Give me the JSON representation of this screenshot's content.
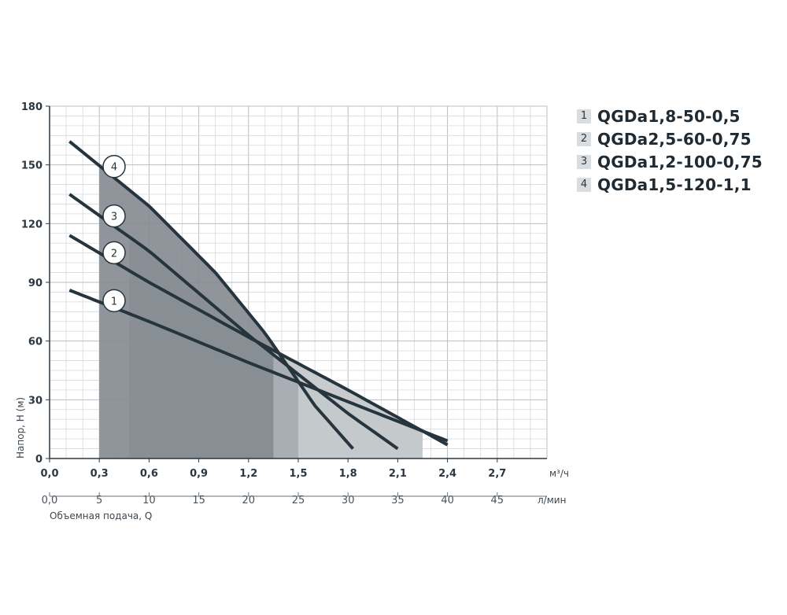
{
  "chart_data": {
    "type": "line",
    "title": "",
    "ylabel": "Напор, Н (м)",
    "xlabel": "Объемная подача, Q",
    "x_unit": "м³/ч",
    "x2_unit": "л/мин",
    "xlim": [
      0,
      3.0
    ],
    "ylim": [
      0,
      180
    ],
    "x_ticks": [
      "0,0",
      "0,3",
      "0,6",
      "0,9",
      "1,2",
      "1,5",
      "1,8",
      "2,1",
      "2,4",
      "2,7"
    ],
    "x2_ticks": [
      "0,0",
      "5",
      "10",
      "15",
      "20",
      "25",
      "30",
      "35",
      "40",
      "45"
    ],
    "y_ticks": [
      "0",
      "30",
      "60",
      "90",
      "120",
      "150",
      "180"
    ],
    "grid": true,
    "legend_position": "right",
    "series": [
      {
        "name": "QGDa1,8-50-0,5",
        "label": "1",
        "x": [
          0.12,
          0.6,
          1.2,
          1.8,
          2.4
        ],
        "y": [
          86,
          70,
          49,
          29,
          9
        ],
        "work_range": [
          0.72,
          2.25
        ]
      },
      {
        "name": "QGDa2,5-60-0,75",
        "label": "2",
        "x": [
          0.12,
          0.6,
          1.2,
          1.8,
          2.4
        ],
        "y": [
          114,
          90,
          62,
          35,
          7
        ],
        "work_range": [
          0.6,
          2.25
        ]
      },
      {
        "name": "QGDa1,2-100-0,75",
        "label": "3",
        "x": [
          0.12,
          0.6,
          1.2,
          1.8,
          2.1
        ],
        "y": [
          135,
          106,
          63,
          23,
          5
        ],
        "work_range": [
          0.48,
          1.5
        ]
      },
      {
        "name": "QGDa1,5-120-1,1",
        "label": "4",
        "x": [
          0.12,
          0.6,
          1.0,
          1.3,
          1.6,
          1.83
        ],
        "y": [
          162,
          129,
          95,
          64,
          27,
          5
        ],
        "work_range": [
          0.3,
          1.35
        ]
      }
    ]
  }
}
